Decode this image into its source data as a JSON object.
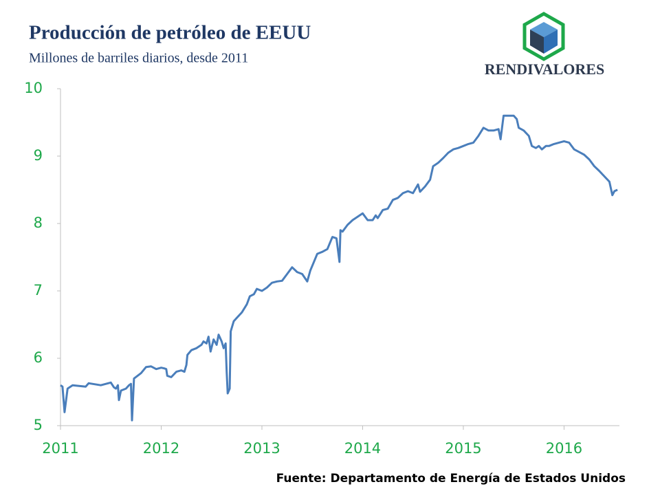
{
  "chart_data": {
    "type": "line",
    "title": "Producción de petróleo de EEUU",
    "subtitle": "Millones de barriles diarios, desde 2011",
    "logo": "RENDIVALORES",
    "source": "Fuente: Departamento de Energía de Estados Unidos",
    "color": "#4a7ebb",
    "xlim": [
      2011,
      2016.55
    ],
    "xticks": [
      2011,
      2012,
      2013,
      2014,
      2015,
      2016
    ],
    "ylim": [
      5,
      10
    ],
    "yticks": [
      5,
      6,
      7,
      8,
      9,
      10
    ],
    "x": [
      2011.0,
      2011.02,
      2011.04,
      2011.07,
      2011.12,
      2011.25,
      2011.28,
      2011.4,
      2011.5,
      2011.53,
      2011.55,
      2011.57,
      2011.58,
      2011.6,
      2011.65,
      2011.68,
      2011.7,
      2011.71,
      2011.73,
      2011.8,
      2011.85,
      2011.9,
      2011.95,
      2012.0,
      2012.03,
      2012.05,
      2012.06,
      2012.1,
      2012.15,
      2012.2,
      2012.23,
      2012.25,
      2012.26,
      2012.3,
      2012.35,
      2012.4,
      2012.42,
      2012.45,
      2012.47,
      2012.49,
      2012.52,
      2012.55,
      2012.57,
      2012.6,
      2012.62,
      2012.64,
      2012.65,
      2012.66,
      2012.68,
      2012.69,
      2012.72,
      2012.75,
      2012.8,
      2012.85,
      2012.88,
      2012.92,
      2012.95,
      2013.0,
      2013.05,
      2013.1,
      2013.15,
      2013.2,
      2013.25,
      2013.3,
      2013.35,
      2013.4,
      2013.45,
      2013.48,
      2013.55,
      2013.6,
      2013.65,
      2013.7,
      2013.74,
      2013.77,
      2013.78,
      2013.8,
      2013.85,
      2013.9,
      2013.95,
      2014.0,
      2014.05,
      2014.1,
      2014.13,
      2014.15,
      2014.2,
      2014.25,
      2014.3,
      2014.35,
      2014.4,
      2014.45,
      2014.5,
      2014.55,
      2014.57,
      2014.62,
      2014.67,
      2014.7,
      2014.75,
      2014.8,
      2014.85,
      2014.9,
      2014.95,
      2015.0,
      2015.05,
      2015.1,
      2015.15,
      2015.2,
      2015.25,
      2015.3,
      2015.35,
      2015.37,
      2015.4,
      2015.45,
      2015.5,
      2015.53,
      2015.55,
      2015.6,
      2015.65,
      2015.68,
      2015.72,
      2015.75,
      2015.78,
      2015.82,
      2015.85,
      2015.9,
      2015.95,
      2016.0,
      2016.05,
      2016.1,
      2016.15,
      2016.2,
      2016.25,
      2016.3,
      2016.35,
      2016.4,
      2016.45,
      2016.48,
      2016.5,
      2016.53
    ],
    "values": [
      5.6,
      5.58,
      5.2,
      5.55,
      5.6,
      5.58,
      5.63,
      5.6,
      5.64,
      5.57,
      5.55,
      5.6,
      5.38,
      5.52,
      5.55,
      5.6,
      5.62,
      5.08,
      5.7,
      5.78,
      5.87,
      5.88,
      5.84,
      5.86,
      5.85,
      5.84,
      5.74,
      5.72,
      5.8,
      5.82,
      5.8,
      5.9,
      6.05,
      6.12,
      6.15,
      6.2,
      6.25,
      6.22,
      6.32,
      6.1,
      6.28,
      6.2,
      6.35,
      6.25,
      6.15,
      6.22,
      5.8,
      5.48,
      5.55,
      6.4,
      6.55,
      6.6,
      6.68,
      6.8,
      6.92,
      6.95,
      7.03,
      7.0,
      7.05,
      7.12,
      7.14,
      7.15,
      7.25,
      7.35,
      7.28,
      7.25,
      7.14,
      7.3,
      7.55,
      7.58,
      7.62,
      7.8,
      7.78,
      7.43,
      7.9,
      7.88,
      7.98,
      8.05,
      8.1,
      8.15,
      8.05,
      8.05,
      8.12,
      8.08,
      8.2,
      8.22,
      8.35,
      8.38,
      8.45,
      8.48,
      8.45,
      8.58,
      8.47,
      8.55,
      8.65,
      8.85,
      8.9,
      8.97,
      9.05,
      9.1,
      9.12,
      9.15,
      9.18,
      9.2,
      9.3,
      9.42,
      9.38,
      9.38,
      9.4,
      9.25,
      9.6,
      9.6,
      9.6,
      9.55,
      9.42,
      9.38,
      9.3,
      9.15,
      9.12,
      9.15,
      9.1,
      9.15,
      9.15,
      9.18,
      9.2,
      9.22,
      9.2,
      9.1,
      9.06,
      9.02,
      8.95,
      8.85,
      8.78,
      8.7,
      8.62,
      8.42,
      8.48,
      8.5
    ]
  }
}
